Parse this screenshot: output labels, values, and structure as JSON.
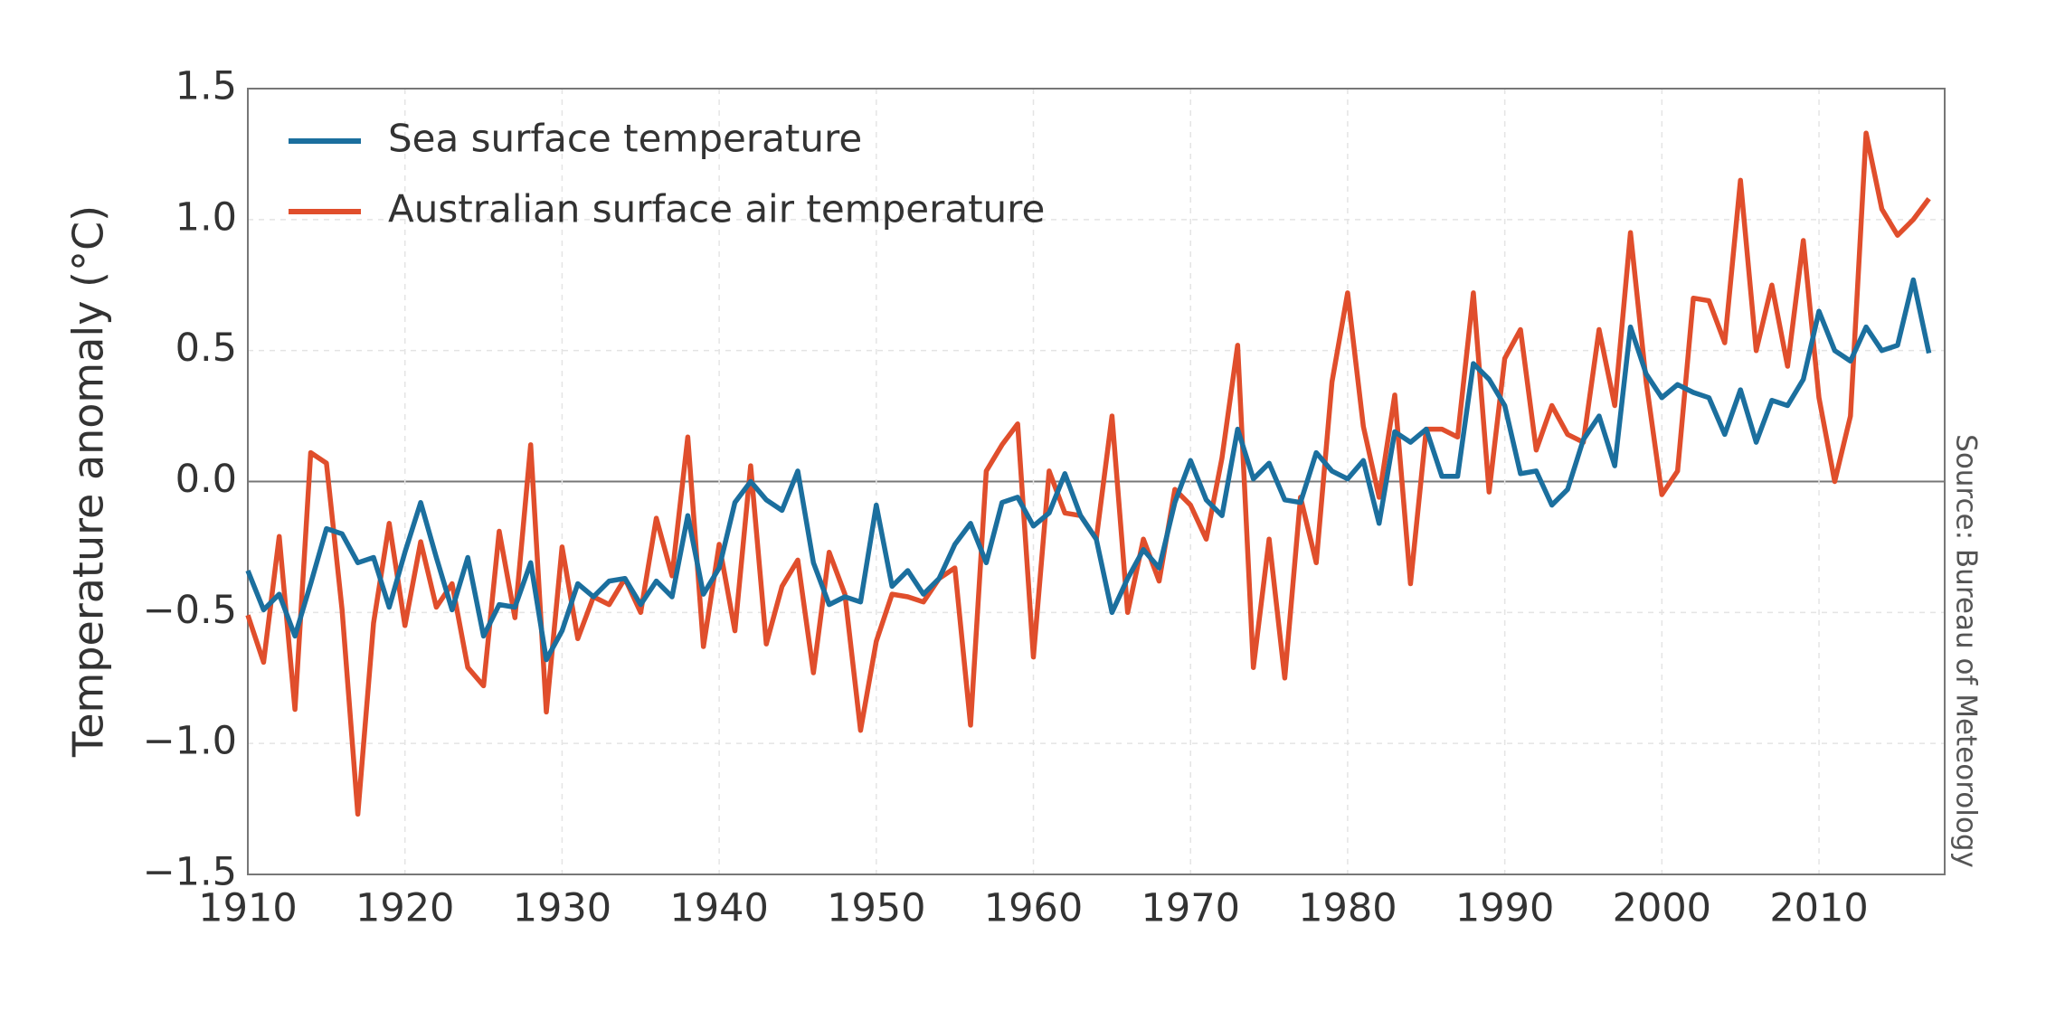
{
  "chart_data": {
    "type": "line",
    "y_label": "Temperature anomaly (°C)",
    "source": "Source: Bureau of Meteorology",
    "x": [
      1910,
      1911,
      1912,
      1913,
      1914,
      1915,
      1916,
      1917,
      1918,
      1919,
      1920,
      1921,
      1922,
      1923,
      1924,
      1925,
      1926,
      1927,
      1928,
      1929,
      1930,
      1931,
      1932,
      1933,
      1934,
      1935,
      1936,
      1937,
      1938,
      1939,
      1940,
      1941,
      1942,
      1943,
      1944,
      1945,
      1946,
      1947,
      1948,
      1949,
      1950,
      1951,
      1952,
      1953,
      1954,
      1955,
      1956,
      1957,
      1958,
      1959,
      1960,
      1961,
      1962,
      1963,
      1964,
      1965,
      1966,
      1967,
      1968,
      1969,
      1970,
      1971,
      1972,
      1973,
      1974,
      1975,
      1976,
      1977,
      1978,
      1979,
      1980,
      1981,
      1982,
      1983,
      1984,
      1985,
      1986,
      1987,
      1988,
      1989,
      1990,
      1991,
      1992,
      1993,
      1994,
      1995,
      1996,
      1997,
      1998,
      1999,
      2000,
      2001,
      2002,
      2003,
      2004,
      2005,
      2006,
      2007,
      2008,
      2009,
      2010,
      2011,
      2012,
      2013,
      2014,
      2015,
      2016,
      2017
    ],
    "series": [
      {
        "name": "Sea surface temperature",
        "color": "#1b6f9e",
        "values": [
          -0.34,
          -0.49,
          -0.43,
          -0.59,
          -0.39,
          -0.18,
          -0.2,
          -0.31,
          -0.29,
          -0.48,
          -0.27,
          -0.08,
          -0.29,
          -0.49,
          -0.29,
          -0.59,
          -0.47,
          -0.48,
          -0.31,
          -0.68,
          -0.57,
          -0.39,
          -0.44,
          -0.38,
          -0.37,
          -0.47,
          -0.38,
          -0.44,
          -0.13,
          -0.43,
          -0.33,
          -0.08,
          0.0,
          -0.07,
          -0.11,
          0.04,
          -0.31,
          -0.47,
          -0.44,
          -0.46,
          -0.09,
          -0.4,
          -0.34,
          -0.43,
          -0.37,
          -0.24,
          -0.16,
          -0.31,
          -0.08,
          -0.06,
          -0.17,
          -0.12,
          0.03,
          -0.13,
          -0.22,
          -0.5,
          -0.37,
          -0.26,
          -0.33,
          -0.08,
          0.08,
          -0.07,
          -0.13,
          0.2,
          0.01,
          0.07,
          -0.07,
          -0.08,
          0.11,
          0.04,
          0.01,
          0.08,
          -0.16,
          0.19,
          0.15,
          0.2,
          0.02,
          0.02,
          0.45,
          0.39,
          0.29,
          0.03,
          0.04,
          -0.09,
          -0.03,
          0.16,
          0.25,
          0.06,
          0.59,
          0.41,
          0.32,
          0.37,
          0.34,
          0.32,
          0.18,
          0.35,
          0.15,
          0.31,
          0.29,
          0.39,
          0.65,
          0.5,
          0.46,
          0.59,
          0.5,
          0.52,
          0.77,
          0.49
        ]
      },
      {
        "name": "Australian surface air temperature",
        "color": "#e04e2c",
        "values": [
          -0.51,
          -0.69,
          -0.21,
          -0.87,
          0.11,
          0.07,
          -0.49,
          -1.27,
          -0.54,
          -0.16,
          -0.55,
          -0.23,
          -0.48,
          -0.39,
          -0.71,
          -0.78,
          -0.19,
          -0.52,
          0.14,
          -0.88,
          -0.25,
          -0.6,
          -0.44,
          -0.47,
          -0.37,
          -0.5,
          -0.14,
          -0.36,
          0.17,
          -0.63,
          -0.24,
          -0.57,
          0.06,
          -0.62,
          -0.4,
          -0.3,
          -0.73,
          -0.27,
          -0.43,
          -0.95,
          -0.61,
          -0.43,
          -0.44,
          -0.46,
          -0.37,
          -0.33,
          -0.93,
          0.04,
          0.14,
          0.22,
          -0.67,
          0.04,
          -0.12,
          -0.13,
          -0.22,
          0.25,
          -0.5,
          -0.22,
          -0.38,
          -0.03,
          -0.09,
          -0.22,
          0.09,
          0.52,
          -0.71,
          -0.22,
          -0.75,
          -0.06,
          -0.31,
          0.38,
          0.72,
          0.21,
          -0.06,
          0.33,
          -0.39,
          0.2,
          0.2,
          0.17,
          0.72,
          -0.04,
          0.47,
          0.58,
          0.12,
          0.29,
          0.18,
          0.15,
          0.58,
          0.29,
          0.95,
          0.38,
          -0.05,
          0.04,
          0.7,
          0.69,
          0.53,
          1.15,
          0.5,
          0.75,
          0.44,
          0.92,
          0.32,
          0.0,
          0.25,
          1.33,
          1.04,
          0.94,
          1.0,
          1.08
        ]
      }
    ],
    "xlim": [
      1910,
      2018
    ],
    "xticks": [
      1910,
      1920,
      1930,
      1940,
      1950,
      1960,
      1970,
      1980,
      1990,
      2000,
      2010
    ],
    "ylim": [
      -1.5,
      1.5
    ],
    "yticks": [
      {
        "value": -1.5,
        "label": "−1.5"
      },
      {
        "value": -1.0,
        "label": "−1.0"
      },
      {
        "value": -0.5,
        "label": "−0.5"
      },
      {
        "value": 0,
        "label": "0.0"
      },
      0.5,
      {
        "value": 1.0,
        "label": "1.0"
      },
      1.5
    ],
    "grid": true,
    "legend": "upper left"
  }
}
